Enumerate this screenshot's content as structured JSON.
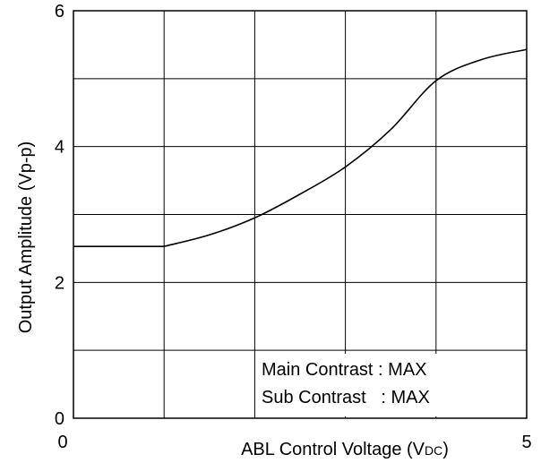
{
  "chart_data": {
    "type": "line",
    "xlabel_main": "ABL Control Voltage  (V",
    "xlabel_sub": "DC",
    "xlabel_end": ")",
    "ylabel": "Output Amplitude  (Vp-p)",
    "xlim": [
      0,
      5
    ],
    "ylim": [
      0,
      6
    ],
    "x_tick_labels": [
      {
        "value": 0,
        "label": "0"
      },
      {
        "value": 5,
        "label": "5"
      }
    ],
    "y_tick_labels": [
      {
        "value": 0,
        "label": "0"
      },
      {
        "value": 2,
        "label": "2"
      },
      {
        "value": 4,
        "label": "4"
      },
      {
        "value": 6,
        "label": "6"
      }
    ],
    "grid": true,
    "x_grid_step": 1,
    "y_grid_step": 1,
    "series": [
      {
        "x": [
          0,
          1,
          1.5,
          2,
          2.5,
          3,
          3.5,
          4,
          4.5,
          5
        ],
        "y": [
          2.53,
          2.53,
          2.7,
          2.95,
          3.3,
          3.7,
          4.25,
          4.97,
          5.28,
          5.43
        ]
      }
    ],
    "annotations": [
      "Main Contrast : MAX",
      "Sub Contrast   : MAX"
    ]
  }
}
